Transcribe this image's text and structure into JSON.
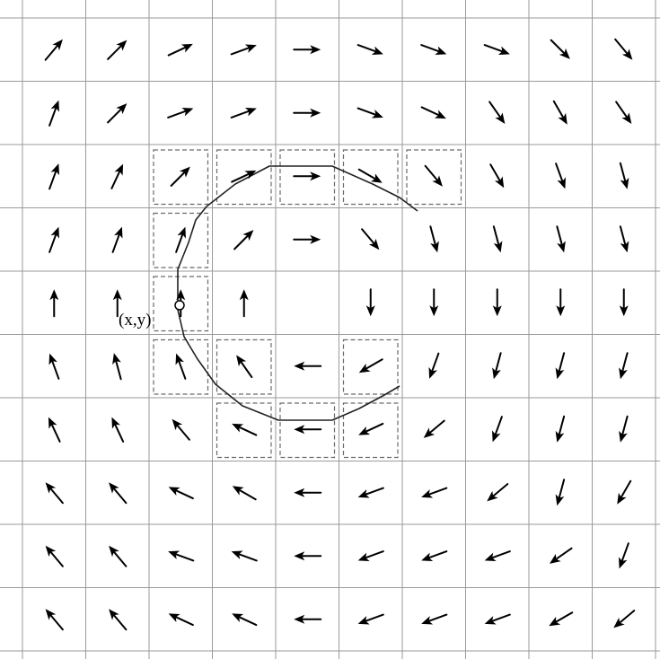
{
  "figure": {
    "description_id": "motion-vector-field-grid",
    "grid": {
      "columns": 10,
      "rows": 10
    },
    "point_label": "(x,y)",
    "colors": {
      "arrow": "#000000",
      "grid": "#9a9a9a",
      "box": "#6a6a6a",
      "curve": "#222222"
    },
    "dashed_boxes": [
      [
        2,
        2
      ],
      [
        3,
        2
      ],
      [
        4,
        2
      ],
      [
        5,
        2
      ],
      [
        6,
        2
      ],
      [
        2,
        3
      ],
      [
        2,
        4
      ],
      [
        2,
        5
      ],
      [
        3,
        5
      ],
      [
        5,
        5
      ],
      [
        3,
        6
      ],
      [
        4,
        6
      ],
      [
        5,
        6
      ]
    ],
    "vectors": [
      [
        {
          "dir": 50
        },
        {
          "dir": 45
        },
        {
          "dir": 25
        },
        {
          "dir": 20
        },
        {
          "dir": 0
        },
        {
          "dir": -20
        },
        {
          "dir": -20
        },
        {
          "dir": -20
        },
        {
          "dir": -45
        },
        {
          "dir": -50
        }
      ],
      [
        {
          "dir": 70
        },
        {
          "dir": 45
        },
        {
          "dir": 20
        },
        {
          "dir": 20
        },
        {
          "dir": 0
        },
        {
          "dir": -20
        },
        {
          "dir": -25
        },
        {
          "dir": -55
        },
        {
          "dir": -60
        },
        {
          "dir": -55
        }
      ],
      [
        {
          "dir": 70
        },
        {
          "dir": 65
        },
        {
          "dir": 45
        },
        {
          "dir": 25
        },
        {
          "dir": 0
        },
        {
          "dir": -30
        },
        {
          "dir": -50
        },
        {
          "dir": -60
        },
        {
          "dir": -70
        },
        {
          "dir": -75
        }
      ],
      [
        {
          "dir": 70
        },
        {
          "dir": 70
        },
        {
          "dir": 70
        },
        {
          "dir": 45
        },
        {
          "dir": 0
        },
        {
          "dir": -50
        },
        {
          "dir": -75
        },
        {
          "dir": -75
        },
        {
          "dir": -75
        },
        {
          "dir": -75
        }
      ],
      [
        {
          "dir": 90
        },
        {
          "dir": 90
        },
        {
          "dir": 90
        },
        {
          "dir": 90
        },
        null,
        {
          "dir": -90
        },
        {
          "dir": -90
        },
        {
          "dir": -90
        },
        {
          "dir": -90
        },
        {
          "dir": -90
        }
      ],
      [
        {
          "dir": 110
        },
        {
          "dir": 105
        },
        {
          "dir": 110
        },
        {
          "dir": 125
        },
        {
          "dir": 180
        },
        {
          "dir": -150
        },
        {
          "dir": -110
        },
        {
          "dir": -105
        },
        {
          "dir": -105
        },
        {
          "dir": -105
        }
      ],
      [
        {
          "dir": 115
        },
        {
          "dir": 115
        },
        {
          "dir": 130
        },
        {
          "dir": 155
        },
        {
          "dir": 180
        },
        {
          "dir": -155
        },
        {
          "dir": -140
        },
        {
          "dir": -110
        },
        {
          "dir": -105
        },
        {
          "dir": -105
        }
      ],
      [
        {
          "dir": 130
        },
        {
          "dir": 130
        },
        {
          "dir": 155
        },
        {
          "dir": 150
        },
        {
          "dir": 180
        },
        {
          "dir": -160
        },
        {
          "dir": -160
        },
        {
          "dir": -140
        },
        {
          "dir": -105
        },
        {
          "dir": -120
        }
      ],
      [
        {
          "dir": 130
        },
        {
          "dir": 130
        },
        {
          "dir": 160
        },
        {
          "dir": 160
        },
        {
          "dir": 180
        },
        {
          "dir": -160
        },
        {
          "dir": -160
        },
        {
          "dir": -160
        },
        {
          "dir": -145
        },
        {
          "dir": -110
        }
      ],
      [
        {
          "dir": 130
        },
        {
          "dir": 130
        },
        {
          "dir": 155
        },
        {
          "dir": 155
        },
        {
          "dir": 180
        },
        {
          "dir": -160
        },
        {
          "dir": -160
        },
        {
          "dir": -160
        },
        {
          "dir": -150
        },
        {
          "dir": -140
        }
      ]
    ]
  }
}
